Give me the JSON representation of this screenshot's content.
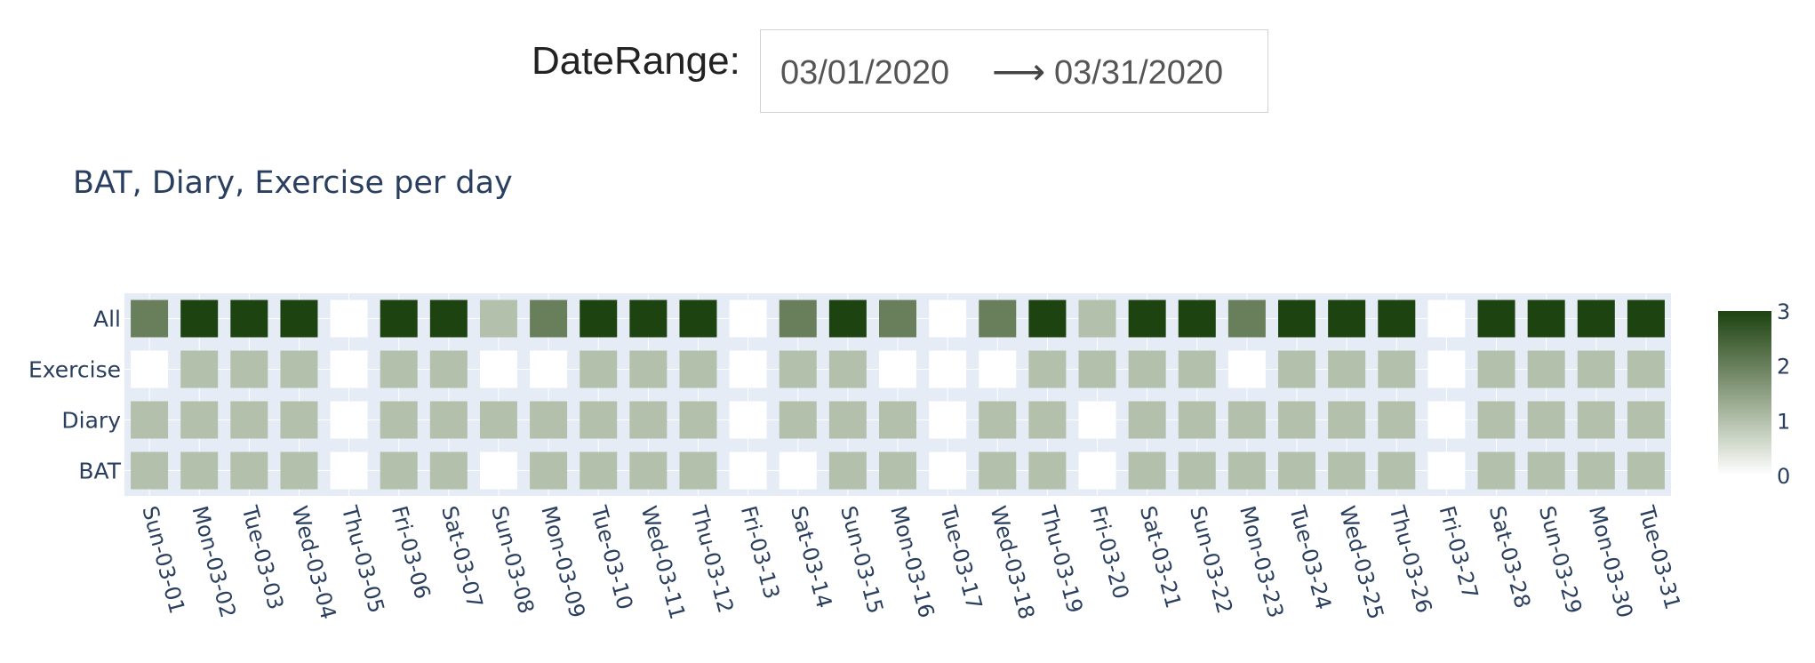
{
  "date_range": {
    "label": "DateRange:",
    "start": "03/01/2020",
    "arrow": "⟶",
    "end": "03/31/2020"
  },
  "chart_data": {
    "type": "heatmap",
    "title": "BAT, Diary, Exercise per day",
    "x": [
      "Sun-03-01",
      "Mon-03-02",
      "Tue-03-03",
      "Wed-03-04",
      "Thu-03-05",
      "Fri-03-06",
      "Sat-03-07",
      "Sun-03-08",
      "Mon-03-09",
      "Tue-03-10",
      "Wed-03-11",
      "Thu-03-12",
      "Fri-03-13",
      "Sat-03-14",
      "Sun-03-15",
      "Mon-03-16",
      "Tue-03-17",
      "Wed-03-18",
      "Thu-03-19",
      "Fri-03-20",
      "Sat-03-21",
      "Sun-03-22",
      "Mon-03-23",
      "Tue-03-24",
      "Wed-03-25",
      "Thu-03-26",
      "Fri-03-27",
      "Sat-03-28",
      "Sun-03-29",
      "Mon-03-30",
      "Tue-03-31"
    ],
    "y": [
      "All",
      "Exercise",
      "Diary",
      "BAT"
    ],
    "z": [
      [
        2,
        3,
        3,
        3,
        0,
        3,
        3,
        1,
        2,
        3,
        3,
        3,
        0,
        2,
        3,
        2,
        0,
        2,
        3,
        1,
        3,
        3,
        2,
        3,
        3,
        3,
        0,
        3,
        3,
        3,
        3
      ],
      [
        0,
        1,
        1,
        1,
        0,
        1,
        1,
        0,
        0,
        1,
        1,
        1,
        0,
        1,
        1,
        0,
        0,
        0,
        1,
        1,
        1,
        1,
        0,
        1,
        1,
        1,
        0,
        1,
        1,
        1,
        1
      ],
      [
        1,
        1,
        1,
        1,
        0,
        1,
        1,
        1,
        1,
        1,
        1,
        1,
        0,
        1,
        1,
        1,
        0,
        1,
        1,
        0,
        1,
        1,
        1,
        1,
        1,
        1,
        0,
        1,
        1,
        1,
        1
      ],
      [
        1,
        1,
        1,
        1,
        0,
        1,
        1,
        0,
        1,
        1,
        1,
        1,
        0,
        0,
        1,
        1,
        0,
        1,
        1,
        0,
        1,
        1,
        1,
        1,
        1,
        1,
        0,
        1,
        1,
        1,
        1
      ]
    ],
    "zmin": 0,
    "zmax": 3,
    "colorscale": [
      "#ffffff",
      "#b3c0ab",
      "#697f5c",
      "#1c4310"
    ],
    "colorbar_ticks": [
      "0",
      "1",
      "2",
      "3"
    ],
    "grid": true,
    "plot_bg": "#e5ecf6"
  }
}
